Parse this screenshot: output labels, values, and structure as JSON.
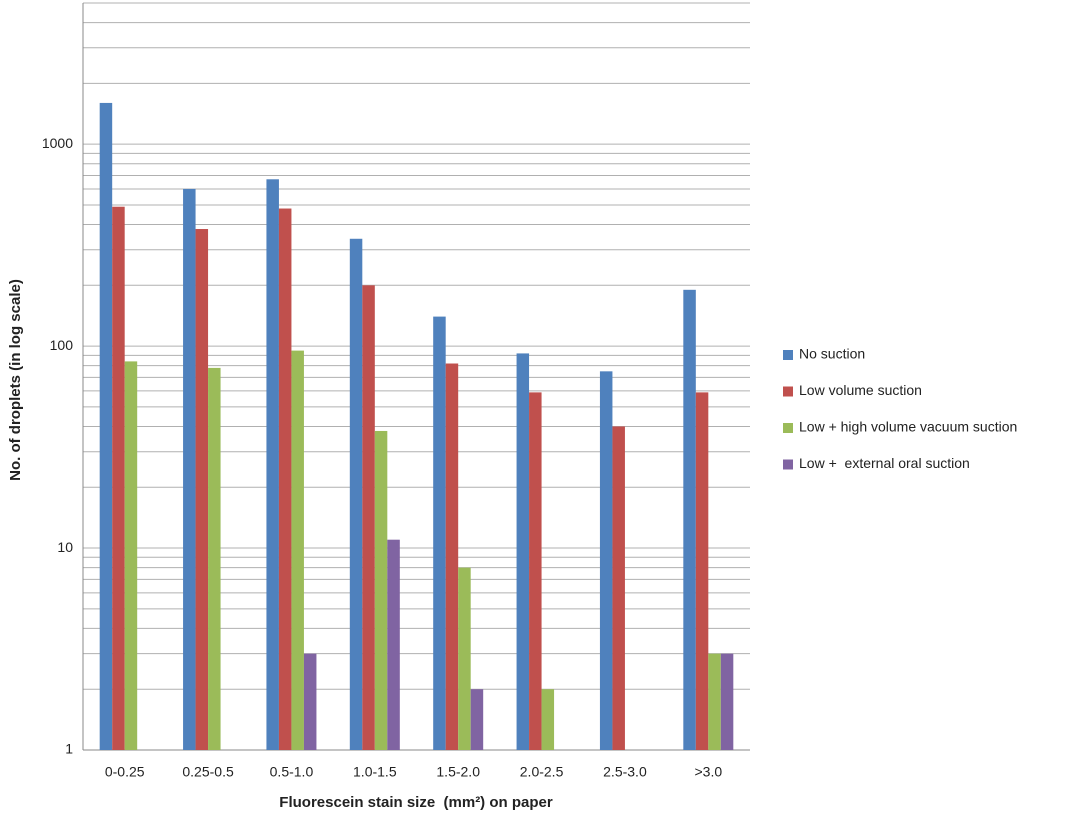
{
  "chart_data": {
    "type": "bar",
    "x_label": "Fluorescein stain size  (mm²) on paper",
    "y_label": "No. of droplets (in log scale)",
    "categories": [
      "0-0.25",
      "0.25-0.5",
      "0.5-1.0",
      "1.0-1.5",
      "1.5-2.0",
      "2.0-2.5",
      "2.5-3.0",
      ">3.0"
    ],
    "series": [
      {
        "name": "No suction",
        "color": "#4f81bd",
        "values": [
          1600,
          600,
          670,
          340,
          140,
          92,
          75,
          190
        ]
      },
      {
        "name": "Low volume suction",
        "color": "#c0504d",
        "values": [
          490,
          380,
          480,
          200,
          82,
          59,
          40,
          59
        ]
      },
      {
        "name": "Low + high volume vacuum suction",
        "color": "#9bbb59",
        "values": [
          84,
          78,
          95,
          38,
          8,
          2,
          null,
          3
        ]
      },
      {
        "name": "Low +  external oral suction",
        "color": "#8064a2",
        "values": [
          null,
          null,
          3,
          11,
          2,
          null,
          null,
          3
        ]
      }
    ],
    "ylim": [
      1,
      5000
    ],
    "yticks": [
      1,
      10,
      100,
      1000
    ],
    "log_scale": true,
    "grid": true,
    "minor_grid": true,
    "legend": "right"
  }
}
